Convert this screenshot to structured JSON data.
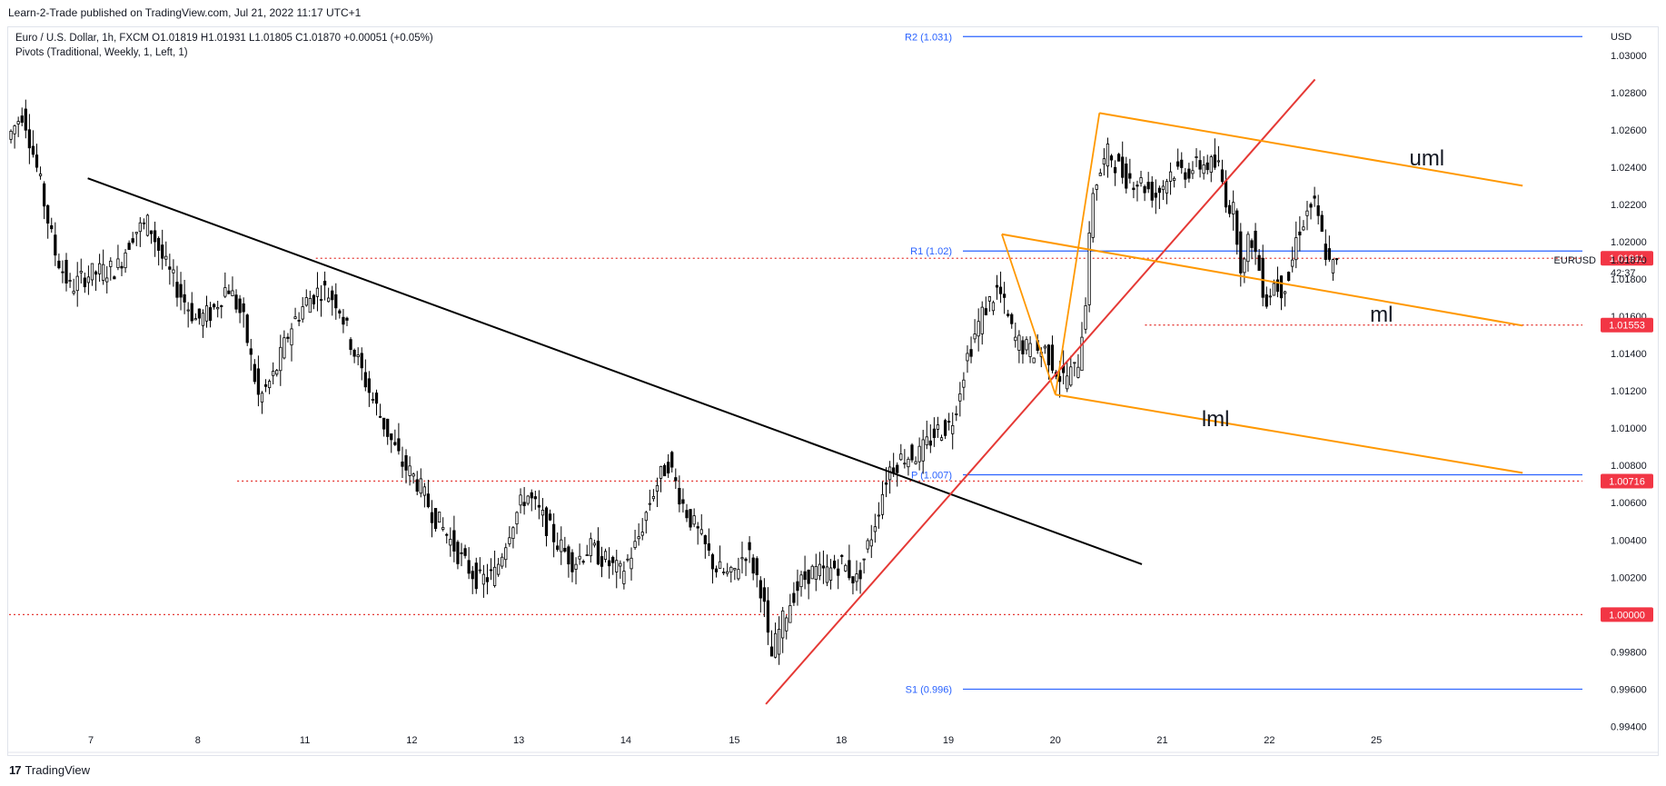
{
  "header": {
    "publisher": "Learn-2-Trade published on TradingView.com, Jul 21, 2022 11:17 UTC+1"
  },
  "legend": {
    "symbol_line": "Euro / U.S. Dollar, 1h, FXCM  O1.01819  H1.01931  L1.01805  C1.01870  +0.00051 (+0.05%)",
    "indicator_line": "Pivots (Traditional, Weekly, 1, Left, 1)"
  },
  "footer": {
    "brand": "TradingView",
    "logo_mark": "17"
  },
  "chart_data": {
    "type": "candlestick",
    "symbol": "EURUSD",
    "timeframe": "1h",
    "y_axis_label": "USD",
    "ylim": [
      0.993,
      1.0315
    ],
    "y_ticks": [
      "1.03000",
      "1.02800",
      "1.02600",
      "1.02400",
      "1.02200",
      "1.02000",
      "1.01800",
      "1.01600",
      "1.01400",
      "1.01200",
      "1.01000",
      "1.00800",
      "1.00600",
      "1.00400",
      "1.00200",
      "1.00000",
      "0.99800",
      "0.99600",
      "0.99400"
    ],
    "x_ticks": [
      "7",
      "8",
      "11",
      "12",
      "13",
      "14",
      "15",
      "18",
      "19",
      "20",
      "21",
      "22",
      "25"
    ],
    "last_price": {
      "value": "1.01870",
      "countdown": "42:37",
      "label": "EURUSD"
    },
    "pivots": [
      {
        "label": "R2 (1.031)",
        "value": 1.031
      },
      {
        "label": "R1 (1.02)",
        "value": 1.0195
      },
      {
        "label": "P (1.007)",
        "value": 1.0075
      },
      {
        "label": "S1 (0.996)",
        "value": 0.996
      }
    ],
    "price_tags": [
      {
        "text": "1.01911",
        "value": 1.01911
      },
      {
        "text": "1.01553",
        "value": 1.01553
      },
      {
        "text": "1.00716",
        "value": 1.00716
      },
      {
        "text": "1.00000",
        "value": 1.0
      }
    ],
    "horizontal_levels": [
      {
        "value": 1.01911,
        "style": "dotted"
      },
      {
        "value": 1.01553,
        "style": "dotted"
      },
      {
        "value": 1.00716,
        "style": "dotted"
      },
      {
        "value": 1.0,
        "style": "dotted"
      }
    ],
    "trendlines": [
      {
        "name": "downtrend",
        "color": "#000000",
        "from": [
          0.05,
          1.0234
        ],
        "to": [
          0.72,
          1.0027
        ]
      },
      {
        "name": "uptrend",
        "color": "#e53935",
        "from": [
          0.481,
          0.9952
        ],
        "to": [
          0.83,
          1.0287
        ]
      }
    ],
    "pitchfork": {
      "color": "#ff9800",
      "lines": [
        {
          "label": "uml",
          "from": [
            0.693,
            1.0269
          ],
          "to": [
            0.962,
            1.023
          ]
        },
        {
          "label": "ml",
          "from": [
            0.631,
            1.0204
          ],
          "to": [
            0.962,
            1.0155
          ]
        },
        {
          "label": "lml",
          "from": [
            0.665,
            1.0118
          ],
          "to": [
            0.962,
            1.0076
          ]
        }
      ],
      "handle": [
        [
          0.631,
          1.0204
        ],
        [
          0.665,
          1.0118
        ],
        [
          0.693,
          1.0269
        ]
      ]
    },
    "annotations": [
      {
        "text": "uml",
        "at": [
          0.89,
          1.0241
        ]
      },
      {
        "text": "ml",
        "at": [
          0.865,
          1.0157
        ]
      },
      {
        "text": "lml",
        "at": [
          0.758,
          1.0101
        ]
      }
    ],
    "price_path": [
      [
        0.0,
        1.0255
      ],
      [
        0.01,
        1.027
      ],
      [
        0.02,
        1.0235
      ],
      [
        0.03,
        1.0195
      ],
      [
        0.04,
        1.0175
      ],
      [
        0.05,
        1.0182
      ],
      [
        0.06,
        1.0184
      ],
      [
        0.07,
        1.0186
      ],
      [
        0.08,
        1.0205
      ],
      [
        0.09,
        1.021
      ],
      [
        0.1,
        1.0188
      ],
      [
        0.11,
        1.0172
      ],
      [
        0.12,
        1.0158
      ],
      [
        0.13,
        1.0162
      ],
      [
        0.14,
        1.0177
      ],
      [
        0.15,
        1.0158
      ],
      [
        0.16,
        1.0115
      ],
      [
        0.17,
        1.0129
      ],
      [
        0.18,
        1.0154
      ],
      [
        0.19,
        1.0168
      ],
      [
        0.2,
        1.0175
      ],
      [
        0.21,
        1.0168
      ],
      [
        0.22,
        1.0142
      ],
      [
        0.23,
        1.012
      ],
      [
        0.24,
        1.0101
      ],
      [
        0.25,
        1.0082
      ],
      [
        0.26,
        1.0072
      ],
      [
        0.27,
        1.0055
      ],
      [
        0.28,
        1.0042
      ],
      [
        0.29,
        1.0028
      ],
      [
        0.3,
        1.0018
      ],
      [
        0.31,
        1.0022
      ],
      [
        0.32,
        1.0048
      ],
      [
        0.33,
        1.0065
      ],
      [
        0.34,
        1.0052
      ],
      [
        0.35,
        1.0038
      ],
      [
        0.36,
        1.0028
      ],
      [
        0.37,
        1.0036
      ],
      [
        0.38,
        1.0029
      ],
      [
        0.39,
        1.0022
      ],
      [
        0.4,
        1.0038
      ],
      [
        0.41,
        1.0065
      ],
      [
        0.42,
        1.0082
      ],
      [
        0.43,
        1.0058
      ],
      [
        0.44,
        1.0042
      ],
      [
        0.45,
        1.0025
      ],
      [
        0.46,
        1.002
      ],
      [
        0.47,
        1.0035
      ],
      [
        0.48,
        1.0012
      ],
      [
        0.485,
        0.9975
      ],
      [
        0.49,
        0.999
      ],
      [
        0.5,
        1.0012
      ],
      [
        0.51,
        1.0023
      ],
      [
        0.52,
        1.0022
      ],
      [
        0.53,
        1.0028
      ],
      [
        0.54,
        1.0018
      ],
      [
        0.55,
        1.0045
      ],
      [
        0.56,
        1.0078
      ],
      [
        0.57,
        1.0085
      ],
      [
        0.58,
        1.0086
      ],
      [
        0.59,
        1.0098
      ],
      [
        0.6,
        1.0102
      ],
      [
        0.61,
        1.0138
      ],
      [
        0.62,
        1.0162
      ],
      [
        0.63,
        1.0175
      ],
      [
        0.64,
        1.0148
      ],
      [
        0.65,
        1.0141
      ],
      [
        0.66,
        1.0142
      ],
      [
        0.67,
        1.0126
      ],
      [
        0.68,
        1.0132
      ],
      [
        0.685,
        1.0165
      ],
      [
        0.69,
        1.0228
      ],
      [
        0.7,
        1.0248
      ],
      [
        0.71,
        1.0235
      ],
      [
        0.72,
        1.0232
      ],
      [
        0.73,
        1.0225
      ],
      [
        0.74,
        1.0238
      ],
      [
        0.75,
        1.0238
      ],
      [
        0.76,
        1.0242
      ],
      [
        0.77,
        1.024
      ],
      [
        0.775,
        1.0222
      ],
      [
        0.78,
        1.0215
      ],
      [
        0.785,
        1.0182
      ],
      [
        0.79,
        1.0205
      ],
      [
        0.795,
        1.0188
      ],
      [
        0.8,
        1.0168
      ],
      [
        0.805,
        1.0178
      ],
      [
        0.81,
        1.0175
      ],
      [
        0.815,
        1.0182
      ],
      [
        0.82,
        1.0205
      ],
      [
        0.83,
        1.0222
      ],
      [
        0.835,
        1.0205
      ],
      [
        0.84,
        1.0187
      ],
      [
        0.845,
        1.0187
      ]
    ]
  }
}
